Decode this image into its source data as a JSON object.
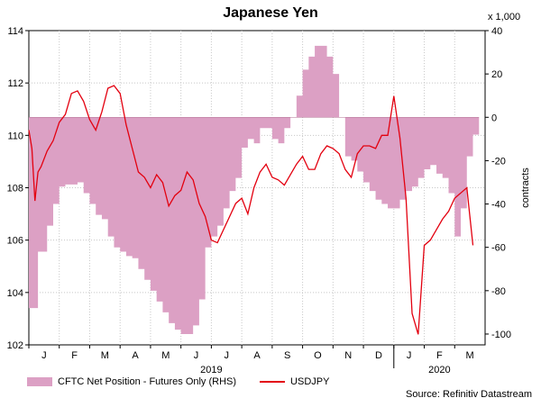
{
  "chart_data": {
    "type": "line",
    "title": "Japanese Yen",
    "rhs_scale_note": "x 1,000",
    "y_right_label": "contracts",
    "source": "Source: Refinitiv Datastream",
    "ylim_left": [
      102,
      114
    ],
    "yticks_left": [
      102,
      104,
      106,
      108,
      110,
      112,
      114
    ],
    "ylim_right": [
      -105,
      40
    ],
    "yticks_right": [
      -100,
      -80,
      -60,
      -40,
      -20,
      0,
      20,
      40
    ],
    "month_labels": [
      "J",
      "F",
      "M",
      "A",
      "M",
      "J",
      "J",
      "A",
      "S",
      "O",
      "N",
      "D",
      "J",
      "F",
      "M"
    ],
    "year_labels": [
      "2019",
      "2020"
    ],
    "colors": {
      "area": "#dca0c4",
      "line": "#e3000f"
    },
    "grid": true,
    "legend_position": "bottom",
    "series": [
      {
        "name": "CFTC Net Position - Futures Only (RHS)",
        "type": "area",
        "x": [
          0,
          0.2,
          0.3,
          0.6,
          0.8,
          1.0,
          1.2,
          1.4,
          1.6,
          1.8,
          2.0,
          2.2,
          2.4,
          2.6,
          2.8,
          3.0,
          3.2,
          3.4,
          3.6,
          3.8,
          4.0,
          4.2,
          4.4,
          4.6,
          4.8,
          5.0,
          5.2,
          5.4,
          5.6,
          5.8,
          6.0,
          6.2,
          6.4,
          6.6,
          6.8,
          7.0,
          7.2,
          7.4,
          7.6,
          7.8,
          8.0,
          8.2,
          8.4,
          8.6,
          8.8,
          9.0,
          9.2,
          9.4,
          9.6,
          9.8,
          10.0,
          10.2,
          10.4,
          10.6,
          10.8,
          11.0,
          11.2,
          11.4,
          11.6,
          11.8,
          12.0,
          12.2,
          12.4,
          12.6,
          12.8,
          13.0,
          13.2,
          13.4,
          13.6,
          13.8,
          14.0,
          14.2,
          14.4,
          14.6
        ],
        "values": [
          -88,
          -88,
          -62,
          -50,
          -40,
          -32,
          -31,
          -31,
          -30,
          -35,
          -40,
          -45,
          -47,
          -55,
          -60,
          -62,
          -64,
          -65,
          -70,
          -75,
          -80,
          -85,
          -90,
          -95,
          -98,
          -100,
          -100,
          -96,
          -84,
          -60,
          -55,
          -50,
          -42,
          -34,
          -28,
          -14,
          -10,
          -12,
          -5,
          -5,
          -10,
          -12,
          -5,
          0,
          10,
          22,
          28,
          33,
          33,
          28,
          20,
          0,
          -18,
          -20,
          -25,
          -30,
          -34,
          -38,
          -40,
          -42,
          -42,
          -38,
          -34,
          -32,
          -28,
          -24,
          -22,
          -26,
          -28,
          -35,
          -55,
          -42,
          -18,
          -8
        ]
      },
      {
        "name": "USDJPY",
        "type": "line",
        "x": [
          0,
          0.1,
          0.2,
          0.3,
          0.4,
          0.6,
          0.8,
          1.0,
          1.2,
          1.4,
          1.6,
          1.8,
          2.0,
          2.2,
          2.4,
          2.6,
          2.8,
          3.0,
          3.2,
          3.4,
          3.6,
          3.8,
          4.0,
          4.2,
          4.4,
          4.6,
          4.8,
          5.0,
          5.2,
          5.4,
          5.6,
          5.8,
          6.0,
          6.2,
          6.4,
          6.6,
          6.8,
          7.0,
          7.2,
          7.4,
          7.6,
          7.8,
          8.0,
          8.2,
          8.4,
          8.6,
          8.8,
          9.0,
          9.2,
          9.4,
          9.6,
          9.8,
          10.0,
          10.2,
          10.4,
          10.6,
          10.8,
          11.0,
          11.2,
          11.4,
          11.6,
          11.8,
          12.0,
          12.2,
          12.4,
          12.6,
          12.8,
          13.0,
          13.2,
          13.4,
          13.6,
          13.8,
          14.0,
          14.2,
          14.4,
          14.6
        ],
        "values": [
          110.2,
          109.5,
          107.5,
          108.6,
          108.8,
          109.4,
          109.8,
          110.5,
          110.8,
          111.6,
          111.7,
          111.3,
          110.6,
          110.2,
          110.9,
          111.8,
          111.9,
          111.6,
          110.4,
          109.5,
          108.6,
          108.4,
          108.0,
          108.5,
          108.2,
          107.3,
          107.7,
          107.9,
          108.6,
          108.3,
          107.4,
          106.9,
          106.0,
          105.9,
          106.4,
          106.9,
          107.4,
          107.6,
          107.0,
          108.0,
          108.6,
          108.9,
          108.4,
          108.3,
          108.1,
          108.5,
          108.9,
          109.2,
          108.7,
          108.7,
          109.3,
          109.6,
          109.5,
          109.3,
          108.7,
          108.4,
          109.3,
          109.6,
          109.6,
          109.5,
          110.0,
          110.0,
          111.5,
          109.9,
          107.6,
          103.2,
          102.4,
          105.8,
          106.0,
          106.4,
          106.8,
          107.1,
          107.6,
          107.8,
          108.0,
          105.8
        ]
      }
    ]
  }
}
